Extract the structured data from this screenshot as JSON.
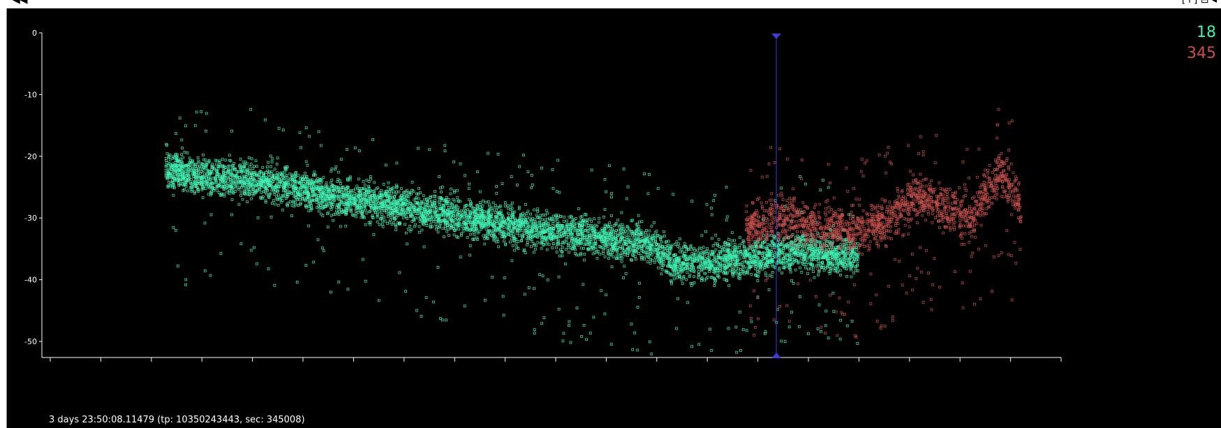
{
  "window": {
    "left_glyph": "◀◀",
    "right_glyph": "[↑] ⊟ ◂"
  },
  "legend": [
    {
      "label": "18",
      "color": "#3ff0b4"
    },
    {
      "label": "345",
      "color": "#c8504c"
    }
  ],
  "status_text": "3 days 23:50:08.11479 (tp: 10350243443, sec: 345008)",
  "cursor": {
    "x_fraction": 0.7206,
    "color": "#3b3bd6"
  },
  "chart_data": {
    "type": "scatter",
    "title": "",
    "xlabel": "",
    "ylabel": "",
    "ylim": [
      -53,
      0
    ],
    "yticks": [
      0,
      -10,
      -20,
      -30,
      -40,
      -50
    ],
    "x_minor_ticks": 21,
    "grid": false,
    "series": [
      {
        "name": "18",
        "color": "#3ff0b4",
        "trend_x": [
          0.1206,
          0.15,
          0.22,
          0.28,
          0.35,
          0.42,
          0.5,
          0.55,
          0.594,
          0.62,
          0.66,
          0.7,
          0.74,
          0.78,
          0.8
        ],
        "trend_y": [
          -22,
          -23,
          -24,
          -26,
          -28,
          -30,
          -32,
          -33,
          -34,
          -37,
          -37,
          -36,
          -35,
          -36,
          -36
        ]
      },
      {
        "name": "345",
        "color": "#c8504c",
        "trend_x": [
          0.69,
          0.73,
          0.76,
          0.8,
          0.83,
          0.86,
          0.88,
          0.91,
          0.94,
          0.96
        ],
        "trend_y": [
          -31,
          -30,
          -31,
          -32,
          -30,
          -26,
          -28,
          -30,
          -22,
          -28
        ]
      }
    ]
  }
}
